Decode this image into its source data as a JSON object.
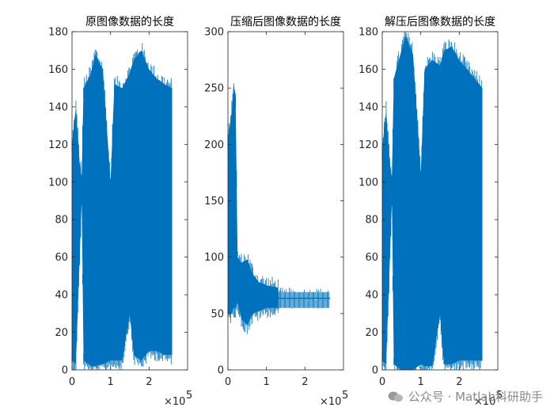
{
  "chart_data": [
    {
      "type": "area",
      "title": "原图像数据的长度",
      "xlabel": "",
      "ylabel": "",
      "xlim": [
        0,
        3
      ],
      "ylim": [
        0,
        180
      ],
      "x_ticks": [
        "0",
        "1",
        "2"
      ],
      "y_ticks": [
        "0",
        "20",
        "40",
        "60",
        "80",
        "100",
        "120",
        "140",
        "160",
        "180"
      ],
      "x_multiplier": "×10",
      "x_multiplier_exp": "5",
      "envelope": [
        {
          "x": 0.0,
          "lo": 5,
          "hi": 120
        },
        {
          "x": 0.1,
          "lo": 3,
          "hi": 140
        },
        {
          "x": 0.2,
          "lo": 60,
          "hi": 110
        },
        {
          "x": 0.25,
          "lo": 90,
          "hi": 103
        },
        {
          "x": 0.3,
          "lo": 5,
          "hi": 150
        },
        {
          "x": 0.5,
          "lo": 2,
          "hi": 158
        },
        {
          "x": 0.6,
          "lo": 2,
          "hi": 168
        },
        {
          "x": 0.8,
          "lo": 3,
          "hi": 160
        },
        {
          "x": 1.0,
          "lo": 5,
          "hi": 100
        },
        {
          "x": 1.1,
          "lo": 5,
          "hi": 152
        },
        {
          "x": 1.3,
          "lo": 5,
          "hi": 150
        },
        {
          "x": 1.5,
          "lo": 30,
          "hi": 158
        },
        {
          "x": 1.6,
          "lo": 8,
          "hi": 165
        },
        {
          "x": 1.8,
          "lo": 5,
          "hi": 170
        },
        {
          "x": 2.0,
          "lo": 10,
          "hi": 160
        },
        {
          "x": 2.2,
          "lo": 10,
          "hi": 155
        },
        {
          "x": 2.4,
          "lo": 8,
          "hi": 152
        },
        {
          "x": 2.6,
          "lo": 8,
          "hi": 150
        }
      ]
    },
    {
      "type": "area",
      "title": "压缩后图像数据的长度",
      "xlabel": "",
      "ylabel": "",
      "xlim": [
        0,
        3
      ],
      "ylim": [
        0,
        300
      ],
      "x_ticks": [
        "0",
        "1",
        "2"
      ],
      "y_ticks": [
        "0",
        "50",
        "100",
        "150",
        "200",
        "250",
        "300"
      ],
      "x_multiplier": "×10",
      "x_multiplier_exp": "5",
      "envelope": [
        {
          "x": 0.0,
          "lo": 50,
          "hi": 205
        },
        {
          "x": 0.1,
          "lo": 50,
          "hi": 230
        },
        {
          "x": 0.15,
          "lo": 55,
          "hi": 255
        },
        {
          "x": 0.2,
          "lo": 55,
          "hi": 240
        },
        {
          "x": 0.25,
          "lo": 60,
          "hi": 100
        },
        {
          "x": 0.35,
          "lo": 45,
          "hi": 95
        },
        {
          "x": 0.5,
          "lo": 40,
          "hi": 98
        },
        {
          "x": 0.65,
          "lo": 50,
          "hi": 85
        },
        {
          "x": 0.8,
          "lo": 52,
          "hi": 78
        },
        {
          "x": 1.0,
          "lo": 55,
          "hi": 75
        },
        {
          "x": 1.3,
          "lo": 55,
          "hi": 73
        },
        {
          "x": 1.32,
          "lo": 63,
          "hi": 64
        },
        {
          "x": 2.65,
          "lo": 63,
          "hi": 64
        }
      ]
    },
    {
      "type": "area",
      "title": "解压后图像数据的长度",
      "xlabel": "",
      "ylabel": "",
      "xlim": [
        0,
        3
      ],
      "ylim": [
        0,
        180
      ],
      "x_ticks": [
        "0",
        "1",
        "2"
      ],
      "y_ticks": [
        "0",
        "20",
        "40",
        "60",
        "80",
        "100",
        "120",
        "140",
        "160",
        "180"
      ],
      "x_multiplier": "×10",
      "x_multiplier_exp": "5",
      "envelope": [
        {
          "x": 0.0,
          "lo": 5,
          "hi": 118
        },
        {
          "x": 0.1,
          "lo": 3,
          "hi": 138
        },
        {
          "x": 0.2,
          "lo": 60,
          "hi": 108
        },
        {
          "x": 0.25,
          "lo": 90,
          "hi": 103
        },
        {
          "x": 0.3,
          "lo": 3,
          "hi": 155
        },
        {
          "x": 0.5,
          "lo": 0,
          "hi": 170
        },
        {
          "x": 0.6,
          "lo": 0,
          "hi": 178
        },
        {
          "x": 0.8,
          "lo": 0,
          "hi": 168
        },
        {
          "x": 1.0,
          "lo": 3,
          "hi": 105
        },
        {
          "x": 1.1,
          "lo": 2,
          "hi": 160
        },
        {
          "x": 1.3,
          "lo": 2,
          "hi": 165
        },
        {
          "x": 1.5,
          "lo": 30,
          "hi": 162
        },
        {
          "x": 1.6,
          "lo": 3,
          "hi": 170
        },
        {
          "x": 1.8,
          "lo": 3,
          "hi": 172
        },
        {
          "x": 2.0,
          "lo": 5,
          "hi": 165
        },
        {
          "x": 2.2,
          "lo": 5,
          "hi": 160
        },
        {
          "x": 2.4,
          "lo": 5,
          "hi": 155
        },
        {
          "x": 2.6,
          "lo": 5,
          "hi": 150
        }
      ]
    }
  ],
  "style": {
    "series_color": "#0072BD",
    "axis_color": "#262626"
  },
  "watermark": {
    "text": "公众号 · Matlab科研助手",
    "icon": "wechat-icon"
  }
}
